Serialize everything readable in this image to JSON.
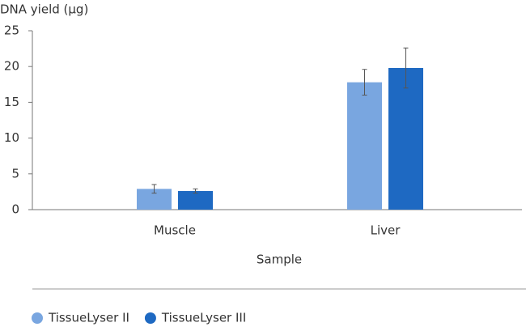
{
  "chart_data": {
    "type": "bar",
    "y_label": "DNA yield (µg)",
    "x_label": "Sample",
    "categories": [
      "Muscle",
      "Liver"
    ],
    "series": [
      {
        "name": "TissueLyser II",
        "color": "#79a6e0",
        "values": [
          2.9,
          17.8
        ],
        "errors": [
          0.6,
          1.8
        ]
      },
      {
        "name": "TissueLyser III",
        "color": "#1e69c2",
        "values": [
          2.6,
          19.8
        ],
        "errors": [
          0.3,
          2.8
        ]
      }
    ],
    "ylim": [
      0,
      25
    ],
    "yticks": [
      0,
      5,
      10,
      15,
      20,
      25
    ],
    "grid": false
  }
}
